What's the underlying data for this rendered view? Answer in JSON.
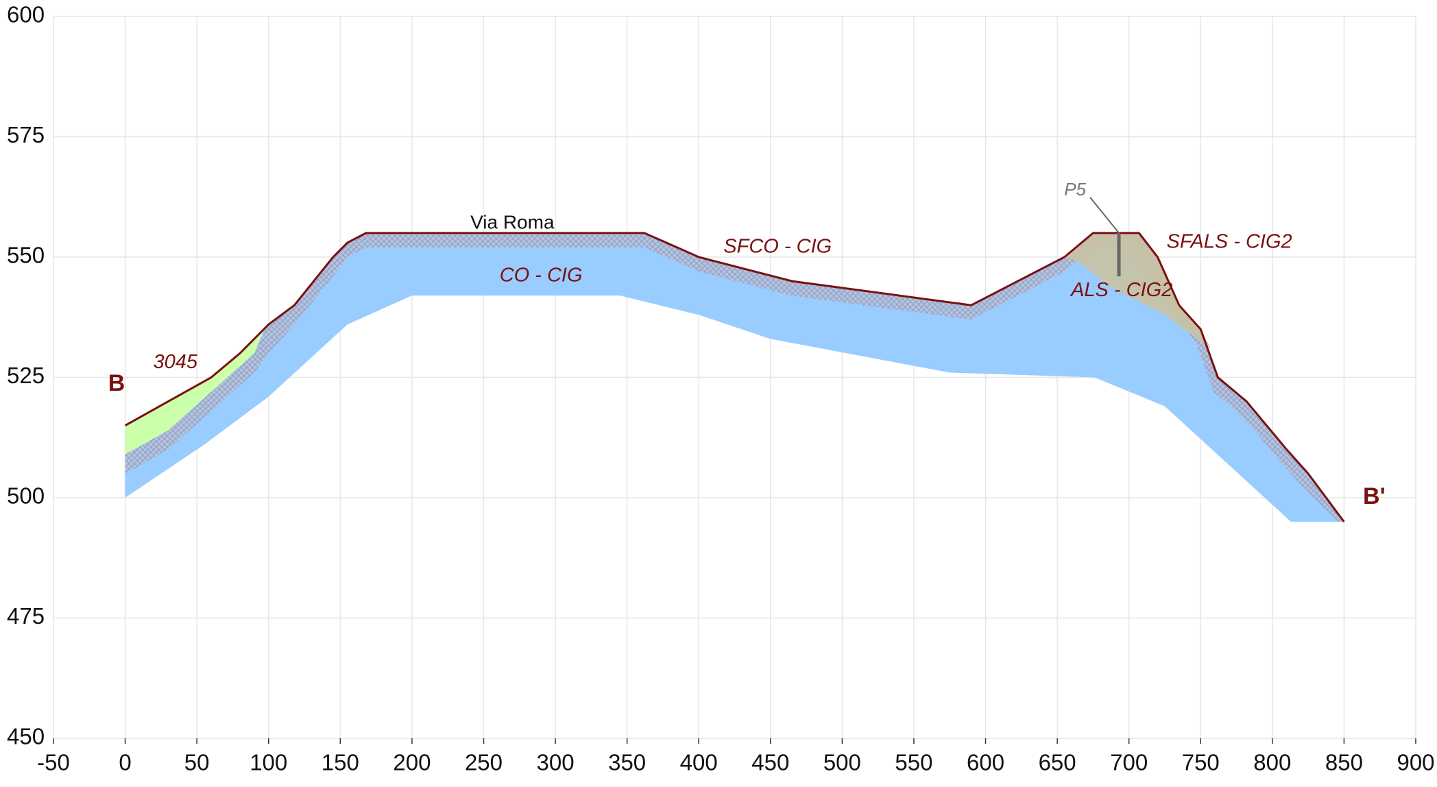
{
  "chart_data": {
    "type": "cross-section",
    "xlim": [
      -50,
      900
    ],
    "xticks": [
      -50,
      0,
      50,
      100,
      150,
      200,
      250,
      300,
      350,
      400,
      450,
      500,
      550,
      600,
      650,
      700,
      750,
      800,
      850,
      900
    ],
    "ylim": [
      450,
      600
    ],
    "yticks": [
      450,
      475,
      500,
      525,
      550,
      575,
      600
    ],
    "grid": true,
    "series": [
      {
        "name": "CO - CIG",
        "color": "#99ccff",
        "x": [
          0,
          30,
          60,
          80,
          100,
          118,
          145,
          155,
          168,
          362,
          385,
          400,
          465,
          590,
          655,
          675,
          707,
          720,
          735,
          750,
          762,
          782,
          810,
          825,
          850,
          813,
          725,
          676,
          575,
          450,
          400,
          345,
          200,
          155,
          100,
          55,
          30,
          0
        ],
        "values": [
          515,
          520,
          525,
          530,
          536,
          540,
          550,
          553,
          555,
          555,
          552,
          550,
          545,
          540,
          550,
          555,
          555,
          550,
          540,
          535,
          525,
          520,
          510,
          505,
          495,
          495,
          519,
          525,
          526,
          533,
          538,
          542,
          542,
          536,
          521,
          511,
          506,
          500
        ]
      },
      {
        "name": "SFCO - CIG",
        "color": "#a9b9d9",
        "x": [
          0,
          30,
          60,
          90,
          100,
          118,
          145,
          155,
          168,
          362,
          385,
          400,
          465,
          590,
          655,
          675,
          707,
          720,
          735,
          750,
          762,
          782,
          810,
          825,
          850,
          846,
          822,
          807,
          779,
          759,
          747,
          700,
          675,
          655,
          590,
          465,
          400,
          385,
          362,
          168,
          155,
          145,
          118,
          100,
          90,
          60,
          30,
          0
        ],
        "values": [
          509,
          514,
          522,
          530,
          536,
          540,
          550,
          553,
          555,
          555,
          552,
          550,
          545,
          540,
          550,
          555,
          555,
          550,
          540,
          535,
          525,
          520,
          510,
          505,
          495,
          495,
          502,
          507,
          517,
          522,
          532,
          552,
          552,
          547,
          537,
          542,
          547,
          549,
          552,
          552,
          550,
          546,
          536,
          530,
          526,
          518,
          510,
          505
        ]
      },
      {
        "name": "3045",
        "color": "#ccffaa",
        "x": [
          0,
          30,
          60,
          80,
          97,
          90,
          60,
          30,
          0
        ],
        "values": [
          515,
          520,
          525,
          530,
          535,
          530,
          522,
          514,
          509
        ]
      },
      {
        "name": "ALS - CIG2",
        "color": "#c9c2a2",
        "x": [
          655,
          675,
          707,
          720,
          735,
          750,
          757,
          725,
          686,
          665
        ],
        "values": [
          550,
          555,
          555,
          550,
          540,
          535,
          531,
          538,
          544,
          549
        ]
      },
      {
        "color": "#7b1010",
        "x": [
          0,
          30,
          60,
          80,
          100,
          118,
          145,
          155,
          168,
          362,
          385,
          400,
          465,
          590,
          655,
          675,
          707,
          720,
          735,
          750,
          762,
          782,
          810,
          825,
          850
        ],
        "values": [
          515,
          520,
          525,
          530,
          536,
          540,
          550,
          553,
          555,
          555,
          552,
          550,
          545,
          540,
          550,
          555,
          555,
          550,
          540,
          535,
          525,
          520,
          510,
          505,
          495
        ]
      }
    ],
    "borehole": {
      "name": "P5",
      "x": 693,
      "top": 555,
      "bottom": 546
    },
    "annotations": [
      "Via Roma",
      "SFALS - CIG2",
      "B",
      "B'"
    ]
  }
}
